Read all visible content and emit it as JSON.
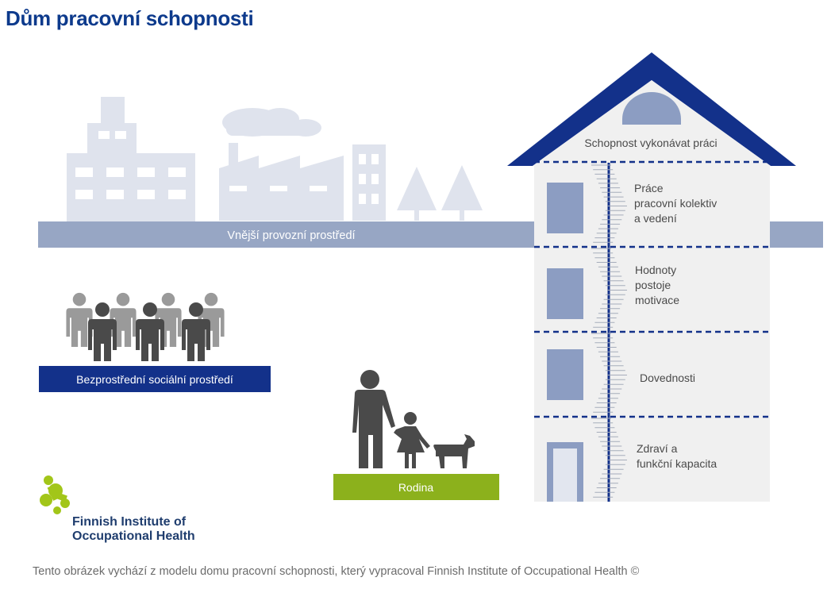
{
  "title": "Dům pracovní schopnosti",
  "labels": {
    "external_environment": "Vnější provozní prostředí",
    "social_environment": "Bezprostřední sociální prostředí",
    "family": "Rodina",
    "roof": "Schopnost vykonávat práci"
  },
  "floors": [
    {
      "lines": [
        "Práce",
        "pracovní kolektiv",
        "a vedení"
      ]
    },
    {
      "lines": [
        "Hodnoty",
        "postoje",
        "motivace"
      ]
    },
    {
      "lines": [
        "Dovednosti"
      ]
    },
    {
      "lines": [
        "Zdraví a",
        "funkční kapacita"
      ]
    }
  ],
  "logo": {
    "line1": "Finnish Institute of",
    "line2": "Occupational Health"
  },
  "caption": "Tento obrázek vychází z modelu domu pracovní schopnosti, který vypracoval Finnish Institute of Occupational Health ©",
  "colors": {
    "title": "#0d3a8c",
    "navy": "#13318a",
    "ground_bar": "#97a6c4",
    "skyline": "#dfe3ed",
    "house_wall": "#f0f0f0",
    "window": "#8c9dc2",
    "people_dark": "#4a4a4a",
    "people_light": "#9a9a9a",
    "family_bar": "#8cb11c",
    "logo_green": "#a2c619",
    "logo_text": "#1f3d6e"
  }
}
